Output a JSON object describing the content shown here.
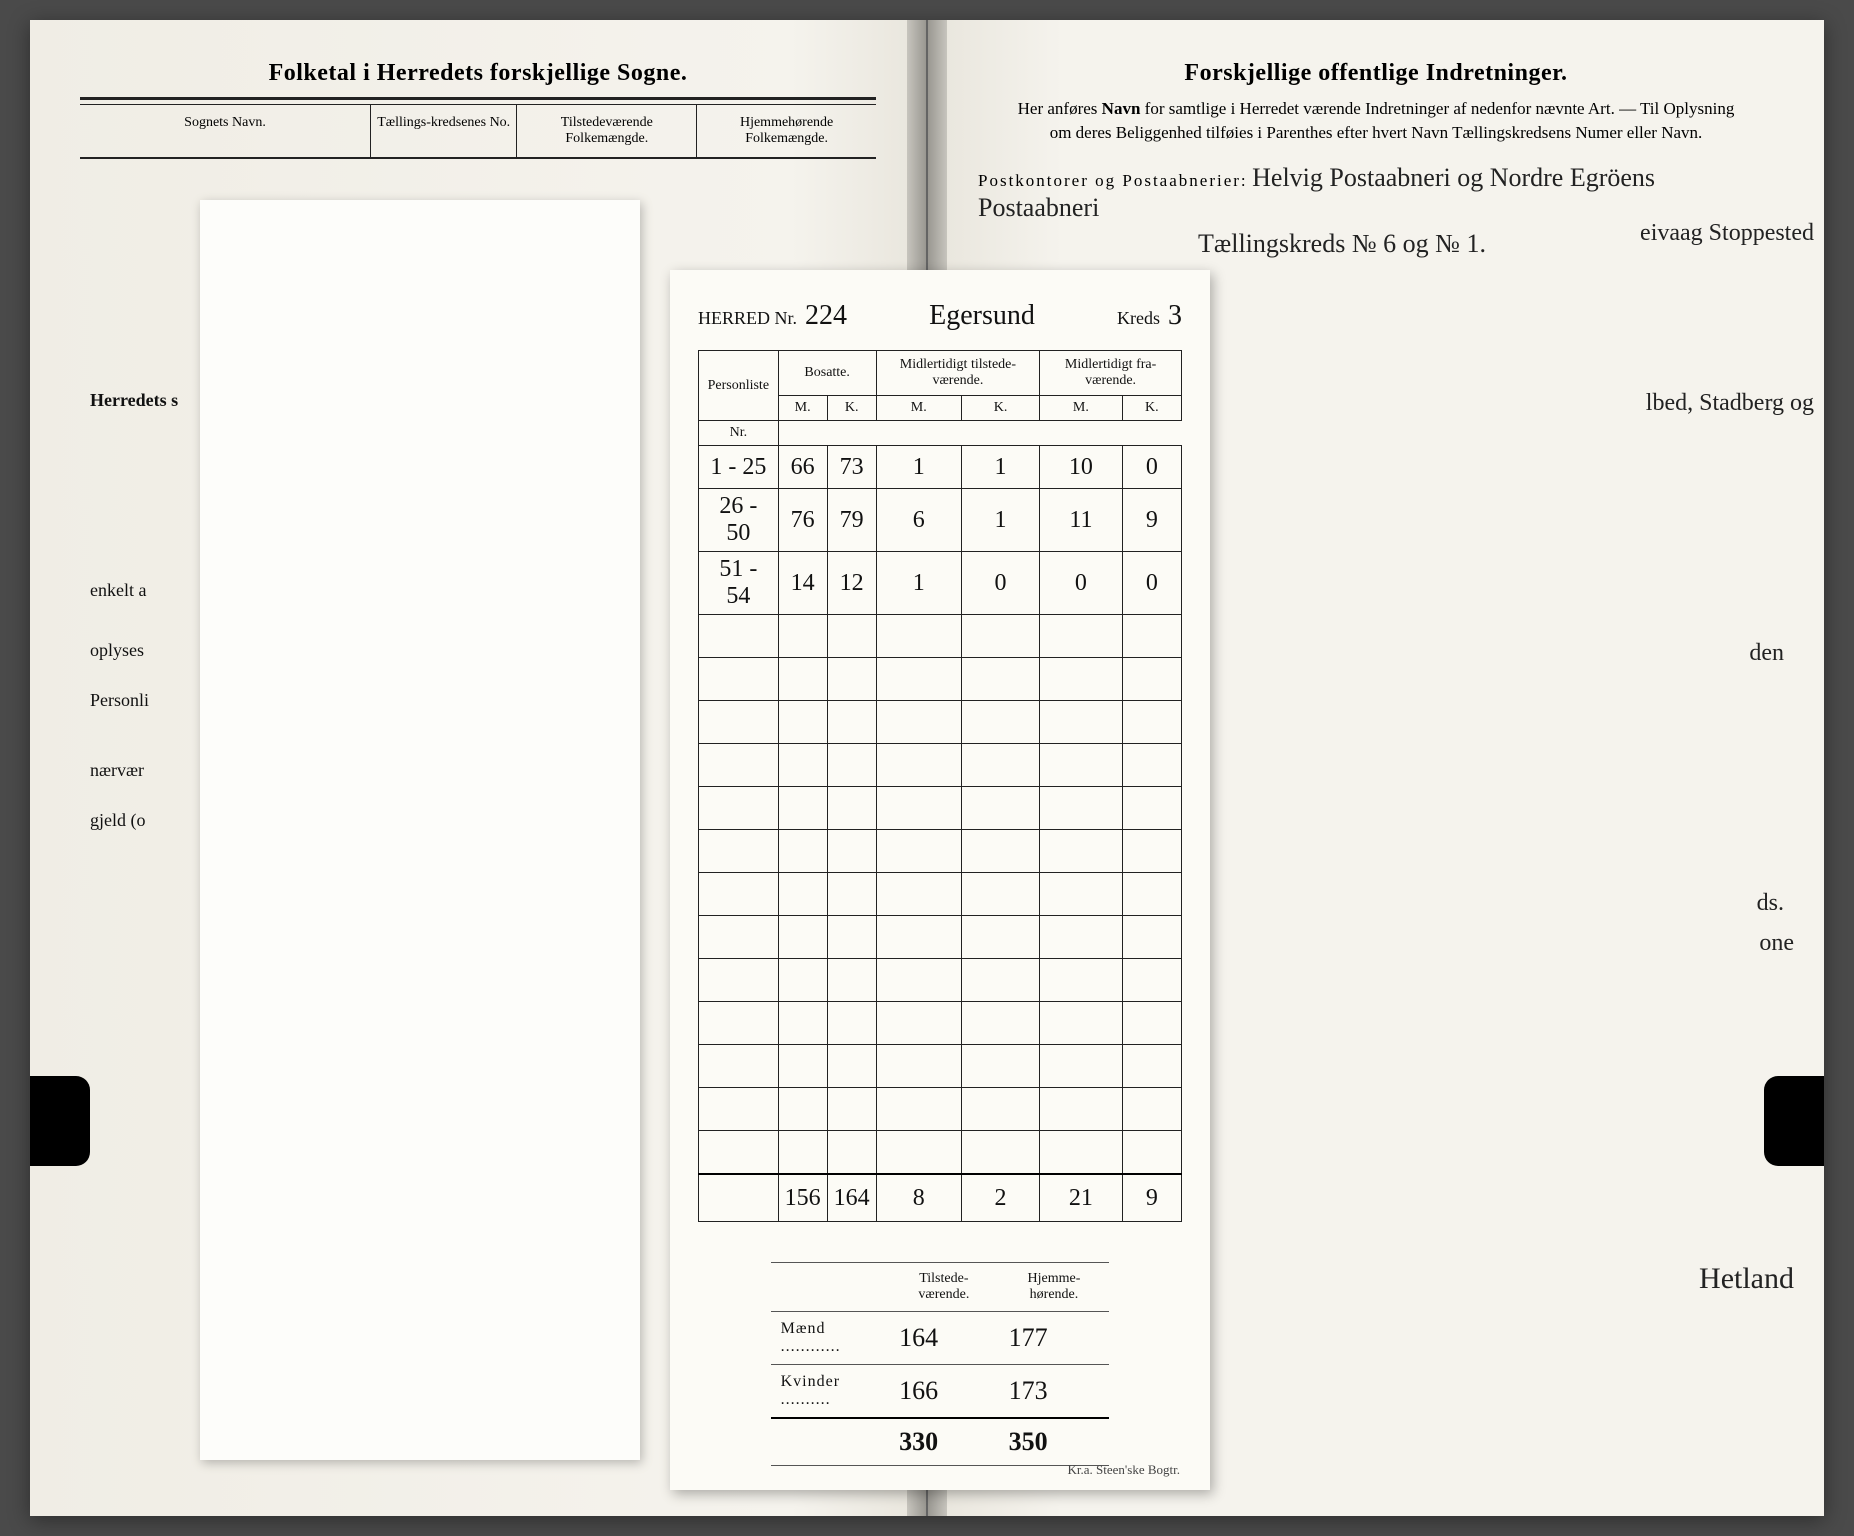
{
  "left": {
    "title": "Folketal i Herredets forskjellige Sogne.",
    "headers": {
      "sogn": "Sognets Navn.",
      "kreds": "Tællings-kredsenes No.",
      "tilstede": "Tilstedeværende Folkemængde.",
      "hjemme": "Hjemmehørende Folkemængde."
    },
    "fragments": {
      "herredets": "Herredets s",
      "enkelt": "enkelt a",
      "oplyses": "oplyses",
      "personli": "Personli",
      "naerv": "nærvær",
      "gjeld": "gjeld (o"
    }
  },
  "right": {
    "title": "Forskjellige offentlige Indretninger.",
    "intro": "Her anføres Navn for samtlige i Herredet værende Indretninger af nedenfor nævnte Art. — Til Oplysning om deres Beliggenhed tilføies i Parenthes efter hvert Navn Tællingskredsens Numer eller Navn.",
    "post_label": "Postkontorer og Postaabnerier:",
    "post_script1": "Helvig Postaabneri og Nordre Egröens Postaabneri",
    "post_script2": "Tællingskreds № 6 og № 1.",
    "frag_right1": "eivaag Stoppested",
    "frag_right2": "lbed, Stadberg og",
    "frag_right3": "den",
    "frag_right4": "ds.",
    "frag_right5": "one",
    "frag_sign": "Hetland"
  },
  "form": {
    "herred_label": "HERRED Nr.",
    "herred_nr": "224",
    "herred_name": "Egersund",
    "kreds_label": "Kreds",
    "kreds_nr": "3",
    "col_personliste": "Personliste",
    "col_bosatte": "Bosatte.",
    "col_tilstede": "Midlertidigt tilstede-værende.",
    "col_frav": "Midlertidigt fra-værende.",
    "sub_nr": "Nr.",
    "sub_m": "M.",
    "sub_k": "K.",
    "rows": [
      {
        "nr": "1 - 25",
        "bm": "66",
        "bk": "73",
        "tm": "1",
        "tk": "1",
        "fm": "10",
        "fk": "0"
      },
      {
        "nr": "26 - 50",
        "bm": "76",
        "bk": "79",
        "tm": "6",
        "tk": "1",
        "fm": "11",
        "fk": "9"
      },
      {
        "nr": "51 - 54",
        "bm": "14",
        "bk": "12",
        "tm": "1",
        "tk": "0",
        "fm": "0",
        "fk": "0"
      }
    ],
    "totals": {
      "bm": "156",
      "bk": "164",
      "tm": "8",
      "tk": "2",
      "fm": "21",
      "fk": "9"
    },
    "summary": {
      "col_tilstede": "Tilstede-værende.",
      "col_hjemme": "Hjemme-hørende.",
      "maend_label": "Mænd",
      "kvinder_label": "Kvinder",
      "maend_t": "164",
      "maend_h": "177",
      "kvinder_t": "166",
      "kvinder_h": "173",
      "tot_t": "330",
      "tot_h": "350"
    },
    "footer": "Kr.a.  Steen'ske Bogtr."
  }
}
